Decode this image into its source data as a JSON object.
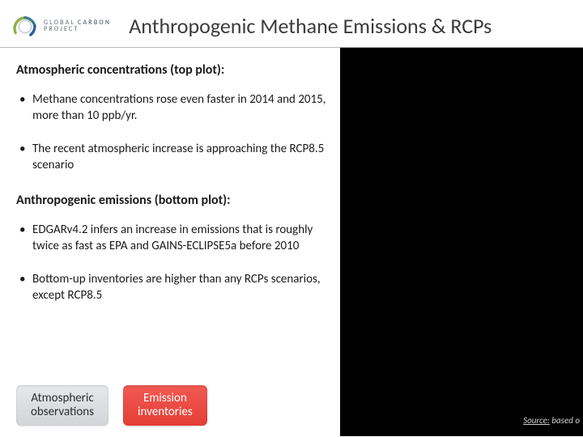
{
  "logo": {
    "line1_a": "GLOBAL",
    "line1_b": "CARBON",
    "line2": "PROJECT",
    "arc_colors": {
      "green": "#8fb04a",
      "teal": "#3a7d8c",
      "blue": "#2f5f9e",
      "inner_grey": "#c7cfd3"
    }
  },
  "title": "Anthropogenic Methane Emissions & RCPs",
  "section1": {
    "heading": "Atmospheric concentrations (top plot):",
    "bullets": [
      "Methane concentrations rose even faster in 2014 and 2015, more than 10 ppb/yr.",
      "The recent atmospheric increase is approaching the RCP8.5 scenario"
    ]
  },
  "section2": {
    "heading": "Anthropogenic emissions (bottom plot):",
    "bullets": [
      "EDGARv4.2 infers an increase in emissions that is roughly twice as fast as EPA and GAINS-ECLIPSE5a before 2010",
      "Bottom-up inventories are higher than any RCPs scenarios, except RCP8.5"
    ]
  },
  "badges": {
    "grey": "Atmospheric\nobservations",
    "red": "Emission\ninventories"
  },
  "source": {
    "label": "Source:",
    "text": " based o"
  },
  "colors": {
    "title": "#3b3b3b",
    "rule": "#b8b8b8",
    "right_panel_bg": "#000000",
    "badge_grey_top": "#e6e8ea",
    "badge_grey_bottom": "#d2d6d9",
    "badge_red_top": "#f15a52",
    "badge_red_bottom": "#e43e36"
  }
}
